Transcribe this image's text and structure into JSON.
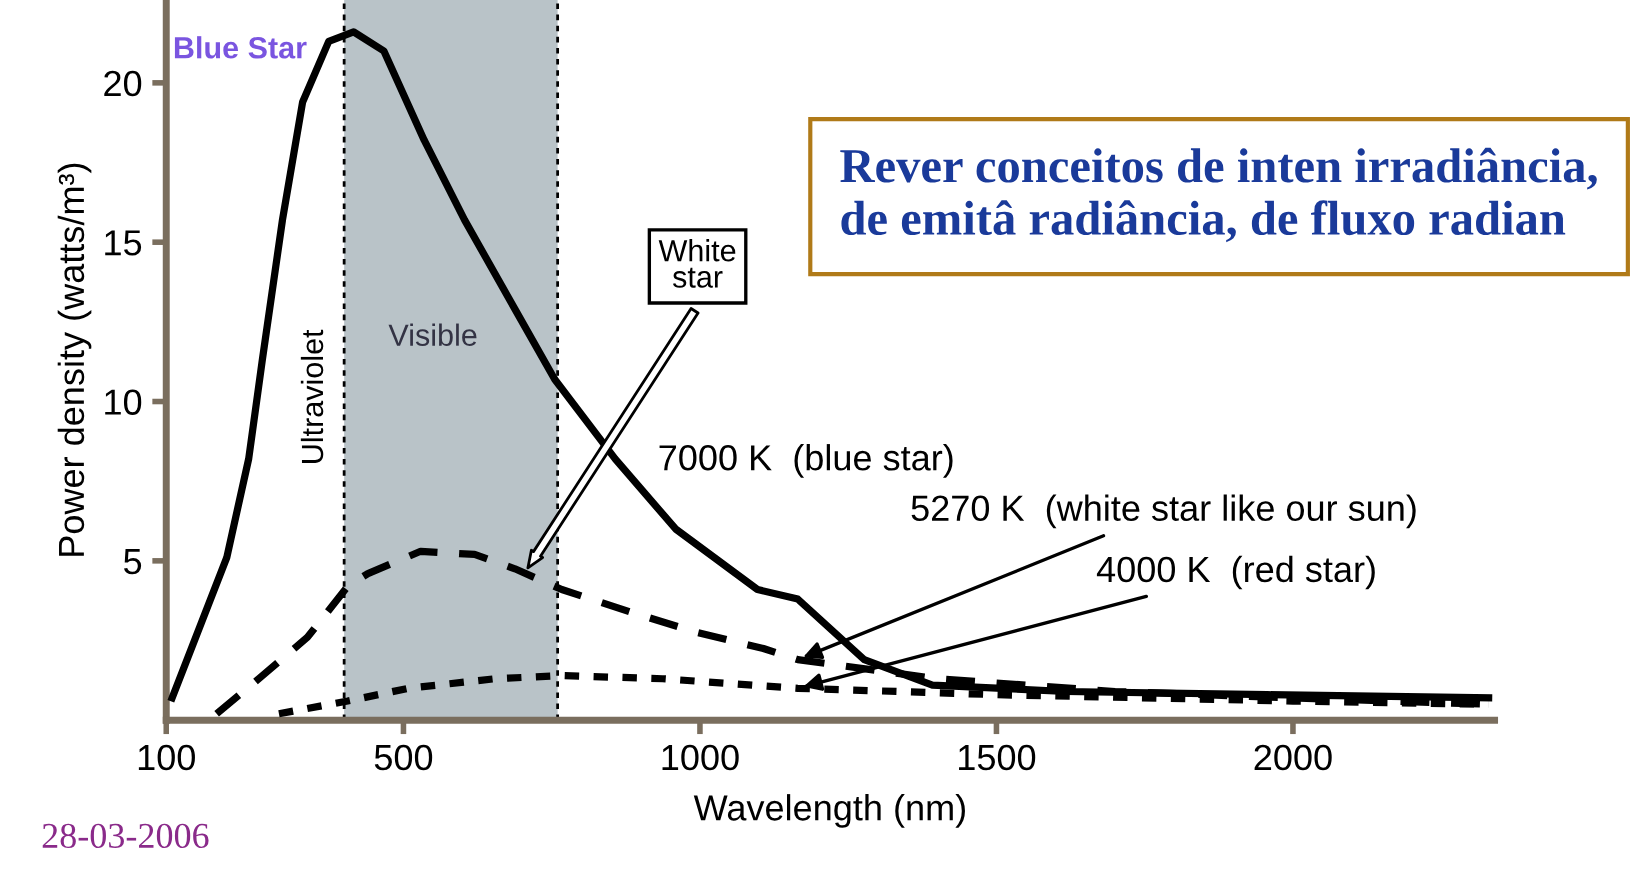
{
  "chart_data": {
    "type": "line",
    "xlabel": "Wavelength (nm)",
    "ylabel": "Power density (watts/m³)",
    "xlim": [
      100,
      2340
    ],
    "ylim": [
      0,
      22.6
    ],
    "xticks": [
      100,
      500,
      1000,
      1500,
      2000
    ],
    "yticks": [
      5,
      10,
      15,
      20
    ],
    "grid": false,
    "legend": false,
    "series": [
      {
        "name": "7000 K  (blue star)",
        "color": "#000000",
        "line_style": "solid",
        "x": [
          110,
          202,
          239,
          262,
          296,
          330,
          374,
          416,
          467,
          535,
          603,
          688,
          755,
          857,
          959,
          1097,
          1165,
          1277,
          1392,
          1617,
          1957,
          2330
        ],
        "values": [
          0.7,
          5.1,
          8.2,
          11.3,
          15.7,
          19.4,
          21.3,
          21.6,
          21.0,
          18.2,
          15.7,
          12.9,
          10.7,
          8.2,
          6.0,
          4.1,
          3.8,
          1.9,
          1.1,
          0.9,
          0.8,
          0.7
        ]
      },
      {
        "name": "5270 K  (white star like our sun)",
        "color": "#000000",
        "line_style": "dashed",
        "x": [
          185,
          256,
          338,
          406,
          440,
          529,
          620,
          688,
          767,
          882,
          995,
          1107,
          1165,
          1400,
          1700,
          2000,
          2330
        ],
        "values": [
          0.2,
          1.3,
          2.6,
          4.2,
          4.6,
          5.3,
          5.2,
          4.75,
          4.1,
          3.4,
          2.75,
          2.25,
          1.9,
          1.3,
          0.9,
          0.7,
          0.5
        ]
      },
      {
        "name": "4000 K  (red star)",
        "color": "#000000",
        "line_style": "dotted",
        "x": [
          290,
          406,
          508,
          654,
          767,
          937,
          1165,
          1500,
          2000,
          2330
        ],
        "values": [
          0.2,
          0.6,
          1.0,
          1.3,
          1.4,
          1.3,
          1.0,
          0.8,
          0.6,
          0.5
        ]
      }
    ],
    "bands": [
      {
        "axis": "x",
        "from": 400,
        "to": 760,
        "label": "Visible",
        "color": "#b9c3c8"
      }
    ],
    "ref_lines": [
      {
        "axis": "x",
        "value": 400,
        "label": "Ultraviolet",
        "line_style": "dotted",
        "color": "#000000"
      },
      {
        "axis": "x",
        "value": 760,
        "label": null,
        "line_style": "dotted",
        "color": "#000000"
      }
    ],
    "annotations": [
      "Blue Star",
      "White star",
      "Rever conceitos de inten irradiância, de emitâ radiância, de fluxo radian",
      "28-03-2006"
    ]
  }
}
